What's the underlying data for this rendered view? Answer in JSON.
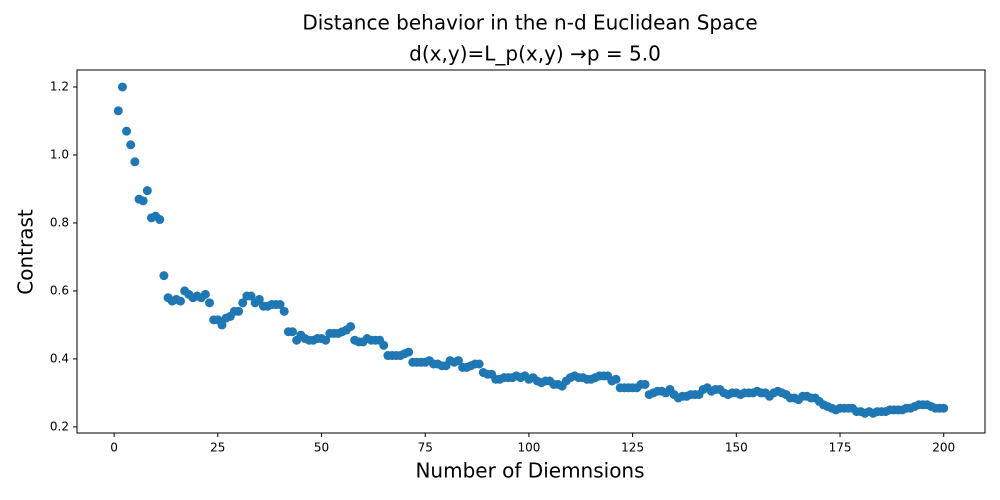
{
  "chart_data": {
    "type": "scatter",
    "title": "Distance behavior in the n-d Euclidean Space",
    "subtitle": "d(x,y)=L_p(x,y) →p =  5.0",
    "x_label": "Number of Diemnsions",
    "y_label": "Contrast",
    "series": [
      {
        "color": "#1f77b4",
        "x": [
          1,
          2,
          3,
          4,
          5,
          6,
          7,
          8,
          9,
          10,
          11,
          12,
          13,
          14,
          15,
          16,
          17,
          18,
          19,
          20,
          21,
          22,
          23,
          24,
          25,
          26,
          27,
          28,
          29,
          30,
          31,
          32,
          33,
          34,
          35,
          36,
          37,
          38,
          39,
          40,
          41,
          42,
          43,
          44,
          45,
          46,
          47,
          48,
          49,
          50,
          51,
          52,
          53,
          54,
          55,
          56,
          57,
          58,
          59,
          60,
          61,
          62,
          63,
          64,
          65,
          66,
          67,
          68,
          69,
          70,
          71,
          72,
          73,
          74,
          75,
          76,
          77,
          78,
          79,
          80,
          81,
          82,
          83,
          84,
          85,
          86,
          87,
          88,
          89,
          90,
          91,
          92,
          93,
          94,
          95,
          96,
          97,
          98,
          99,
          100,
          101,
          102,
          103,
          104,
          105,
          106,
          107,
          108,
          109,
          110,
          111,
          112,
          113,
          114,
          115,
          116,
          117,
          118,
          119,
          120,
          121,
          122,
          123,
          124,
          125,
          126,
          127,
          128,
          129,
          130,
          131,
          132,
          133,
          134,
          135,
          136,
          137,
          138,
          139,
          140,
          141,
          142,
          143,
          144,
          145,
          146,
          147,
          148,
          149,
          150,
          151,
          152,
          153,
          154,
          155,
          156,
          157,
          158,
          159,
          160,
          161,
          162,
          163,
          164,
          165,
          166,
          167,
          168,
          169,
          170,
          171,
          172,
          173,
          174,
          175,
          176,
          177,
          178,
          179,
          180,
          181,
          182,
          183,
          184,
          185,
          186,
          187,
          188,
          189,
          190,
          191,
          192,
          193,
          194,
          195,
          196,
          197,
          198,
          199,
          200
        ],
        "values": [
          1.13,
          1.2,
          1.07,
          1.03,
          0.98,
          0.87,
          0.865,
          0.895,
          0.815,
          0.82,
          0.81,
          0.645,
          0.58,
          0.57,
          0.575,
          0.57,
          0.6,
          0.59,
          0.58,
          0.585,
          0.58,
          0.59,
          0.565,
          0.515,
          0.515,
          0.5,
          0.52,
          0.525,
          0.54,
          0.54,
          0.565,
          0.585,
          0.585,
          0.565,
          0.575,
          0.555,
          0.555,
          0.56,
          0.56,
          0.56,
          0.54,
          0.48,
          0.48,
          0.455,
          0.47,
          0.46,
          0.455,
          0.455,
          0.46,
          0.46,
          0.455,
          0.475,
          0.475,
          0.475,
          0.48,
          0.485,
          0.495,
          0.455,
          0.45,
          0.45,
          0.46,
          0.455,
          0.455,
          0.455,
          0.44,
          0.41,
          0.41,
          0.41,
          0.41,
          0.415,
          0.42,
          0.39,
          0.39,
          0.39,
          0.39,
          0.395,
          0.385,
          0.385,
          0.38,
          0.38,
          0.395,
          0.39,
          0.395,
          0.375,
          0.375,
          0.38,
          0.385,
          0.385,
          0.36,
          0.355,
          0.355,
          0.34,
          0.34,
          0.345,
          0.345,
          0.345,
          0.35,
          0.345,
          0.35,
          0.34,
          0.345,
          0.335,
          0.33,
          0.335,
          0.335,
          0.325,
          0.325,
          0.32,
          0.335,
          0.345,
          0.35,
          0.345,
          0.345,
          0.34,
          0.34,
          0.345,
          0.35,
          0.35,
          0.35,
          0.335,
          0.34,
          0.315,
          0.315,
          0.315,
          0.315,
          0.315,
          0.325,
          0.325,
          0.295,
          0.3,
          0.305,
          0.305,
          0.3,
          0.31,
          0.295,
          0.285,
          0.29,
          0.29,
          0.295,
          0.295,
          0.295,
          0.31,
          0.315,
          0.305,
          0.31,
          0.31,
          0.3,
          0.295,
          0.3,
          0.3,
          0.295,
          0.3,
          0.3,
          0.3,
          0.305,
          0.3,
          0.3,
          0.29,
          0.3,
          0.305,
          0.3,
          0.295,
          0.285,
          0.285,
          0.28,
          0.29,
          0.29,
          0.285,
          0.285,
          0.275,
          0.265,
          0.26,
          0.255,
          0.25,
          0.255,
          0.255,
          0.255,
          0.255,
          0.245,
          0.245,
          0.24,
          0.245,
          0.24,
          0.245,
          0.245,
          0.245,
          0.25,
          0.25,
          0.25,
          0.25,
          0.255,
          0.255,
          0.26,
          0.265,
          0.265,
          0.265,
          0.26,
          0.255,
          0.255,
          0.255
        ]
      }
    ],
    "xlim": [
      -8.95,
      209.95
    ],
    "ylim": [
      0.182,
      1.25
    ],
    "xticks": [
      0,
      25,
      50,
      75,
      100,
      125,
      150,
      175,
      200
    ],
    "yticks": [
      0.2,
      0.4,
      0.6,
      0.8,
      {
        "value": 1,
        "label": "1.0"
      },
      1.2
    ],
    "grid": false
  }
}
